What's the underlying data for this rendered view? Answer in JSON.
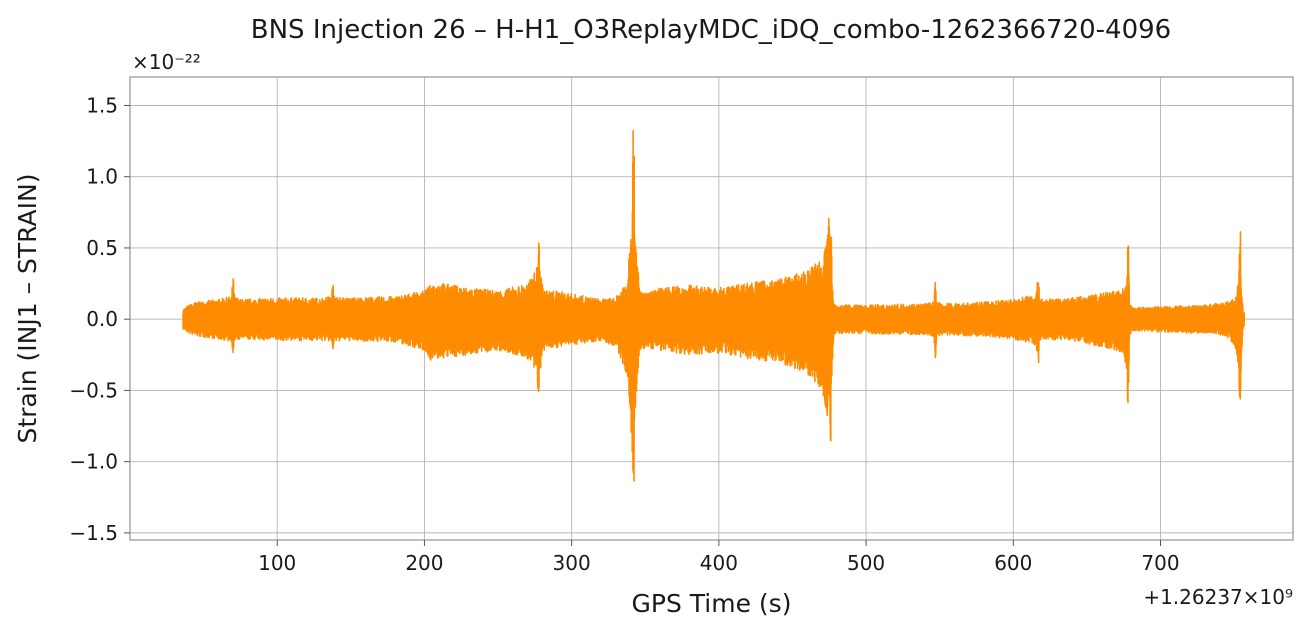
{
  "chart_data": {
    "type": "line",
    "title": "BNS Injection 26 – H-H1_O3ReplayMDC_iDQ_combo-1262366720-4096",
    "xlabel": "GPS Time (s)",
    "ylabel": "Strain (INJ1 – STRAIN)",
    "x_offset_label": "+1.26237×10⁹",
    "y_scale_label": "×10⁻²²",
    "xlim": [
      0,
      790
    ],
    "ylim": [
      -1.55,
      1.7
    ],
    "xticks": [
      100,
      200,
      300,
      400,
      500,
      600,
      700
    ],
    "xtick_labels": [
      "100",
      "200",
      "300",
      "400",
      "500",
      "600",
      "700"
    ],
    "yticks": [
      1.5,
      1.0,
      0.5,
      0.0,
      -0.5,
      -1.0,
      -1.5
    ],
    "ytick_labels": [
      "1.5",
      "1.0",
      "0.5",
      "0.0",
      "−0.5",
      "−1.0",
      "−1.5"
    ],
    "grid": true,
    "series": [
      {
        "color": "#ff8c00",
        "envelope": {
          "x": [
            36,
            40,
            45,
            60,
            69,
            70,
            71,
            75,
            100,
            130,
            137,
            138,
            139,
            145,
            180,
            200,
            205,
            210,
            230,
            250,
            270,
            276,
            277,
            278,
            279,
            282,
            290,
            300,
            320,
            330,
            338,
            340,
            341,
            342,
            343,
            346,
            350,
            360,
            380,
            400,
            420,
            440,
            460,
            470,
            474,
            476,
            477,
            478,
            480,
            500,
            540,
            546,
            547,
            548,
            552,
            580,
            600,
            614,
            616,
            617,
            618,
            622,
            640,
            670,
            675,
            677,
            678,
            679,
            682,
            700,
            730,
            745,
            750,
            752,
            753,
            754,
            755,
            756,
            757
          ],
          "upper": [
            0.07,
            0.1,
            0.12,
            0.14,
            0.16,
            0.34,
            0.16,
            0.14,
            0.15,
            0.15,
            0.16,
            0.33,
            0.16,
            0.15,
            0.16,
            0.2,
            0.25,
            0.26,
            0.22,
            0.2,
            0.25,
            0.35,
            0.45,
            0.62,
            0.3,
            0.2,
            0.2,
            0.18,
            0.14,
            0.15,
            0.3,
            0.7,
            0.9,
            1.55,
            0.7,
            0.22,
            0.18,
            0.22,
            0.24,
            0.22,
            0.26,
            0.28,
            0.34,
            0.45,
            0.6,
            0.92,
            0.3,
            0.12,
            0.1,
            0.1,
            0.11,
            0.12,
            0.28,
            0.12,
            0.11,
            0.12,
            0.14,
            0.18,
            0.2,
            0.38,
            0.16,
            0.14,
            0.15,
            0.2,
            0.22,
            0.25,
            0.7,
            0.1,
            0.08,
            0.09,
            0.1,
            0.12,
            0.15,
            0.2,
            0.3,
            0.79,
            0.25,
            0.08,
            0.04
          ],
          "lower": [
            -0.07,
            -0.1,
            -0.12,
            -0.14,
            -0.16,
            -0.25,
            -0.16,
            -0.14,
            -0.15,
            -0.15,
            -0.16,
            -0.24,
            -0.16,
            -0.15,
            -0.16,
            -0.22,
            -0.3,
            -0.28,
            -0.25,
            -0.22,
            -0.28,
            -0.4,
            -0.51,
            -0.52,
            -0.35,
            -0.2,
            -0.2,
            -0.18,
            -0.15,
            -0.2,
            -0.4,
            -0.72,
            -1.1,
            -1.41,
            -0.75,
            -0.25,
            -0.2,
            -0.22,
            -0.25,
            -0.24,
            -0.28,
            -0.3,
            -0.38,
            -0.5,
            -0.7,
            -0.9,
            -0.35,
            -0.13,
            -0.1,
            -0.1,
            -0.11,
            -0.12,
            -0.34,
            -0.12,
            -0.11,
            -0.12,
            -0.14,
            -0.18,
            -0.22,
            -0.36,
            -0.16,
            -0.14,
            -0.15,
            -0.22,
            -0.25,
            -0.35,
            -0.77,
            -0.12,
            -0.08,
            -0.09,
            -0.1,
            -0.12,
            -0.18,
            -0.25,
            -0.4,
            -0.74,
            -0.3,
            -0.08,
            -0.04
          ]
        }
      }
    ]
  }
}
